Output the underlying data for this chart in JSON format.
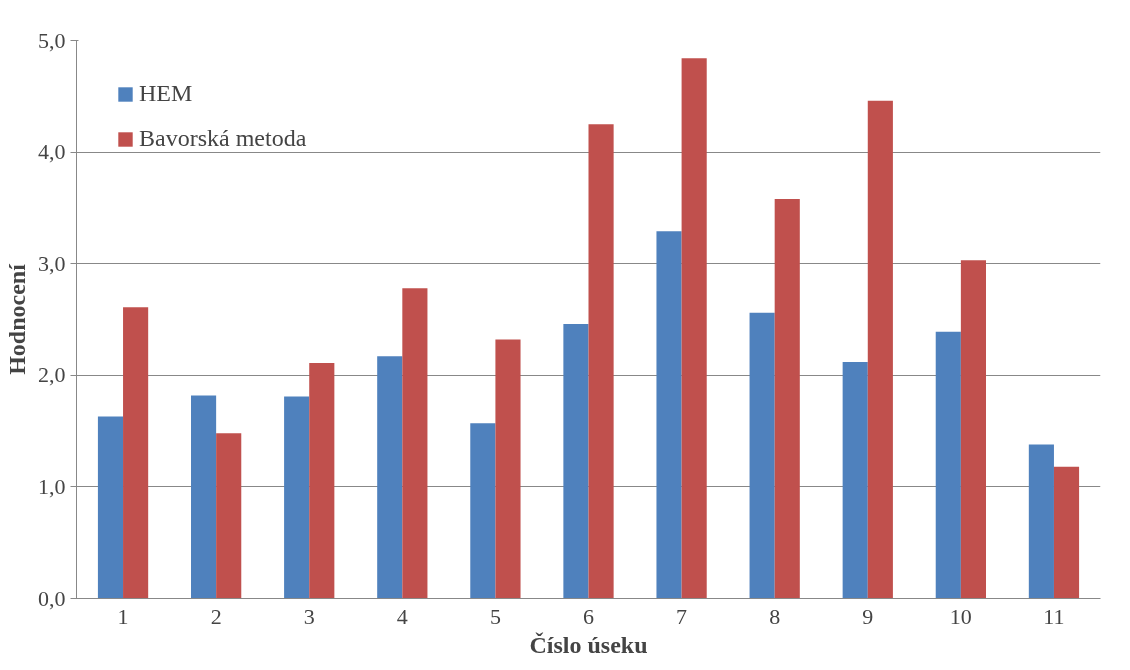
{
  "chart_data": {
    "type": "bar",
    "xlabel": "Číslo úseku",
    "ylabel": "Hodnocení",
    "categories": [
      "1",
      "2",
      "3",
      "4",
      "5",
      "6",
      "7",
      "8",
      "9",
      "10",
      "11"
    ],
    "series": [
      {
        "name": "HEM",
        "color": "#4f81bd",
        "values": [
          1.63,
          1.82,
          1.81,
          2.17,
          1.57,
          2.46,
          3.29,
          2.56,
          2.12,
          2.39,
          1.38
        ]
      },
      {
        "name": "Bavorská metoda",
        "color": "#c0504d",
        "values": [
          2.61,
          1.48,
          2.11,
          2.78,
          2.32,
          4.25,
          4.84,
          3.58,
          4.46,
          3.03,
          1.18
        ]
      }
    ],
    "ylim": [
      0,
      5
    ],
    "yticks": [
      {
        "value": 0,
        "label": "0,0"
      },
      {
        "value": 1,
        "label": "1,0"
      },
      {
        "value": 2,
        "label": "2,0"
      },
      {
        "value": 3,
        "label": "3,0"
      },
      {
        "value": 4,
        "label": "4,0"
      },
      {
        "value": 5,
        "label": "5,0"
      }
    ],
    "grid": "y",
    "legend": "top left"
  }
}
